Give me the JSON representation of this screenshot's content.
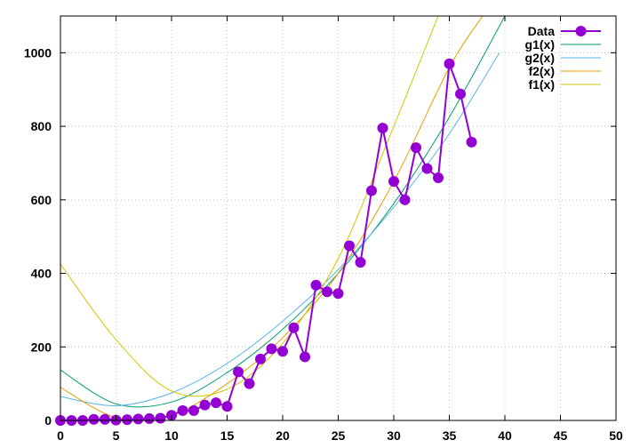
{
  "chart_data": {
    "type": "line",
    "xlim": [
      0,
      50
    ],
    "ylim": [
      0,
      1100
    ],
    "grid": true,
    "legend_position": "top-right",
    "x_ticks": [
      "0",
      "5",
      "10",
      "15",
      "20",
      "25",
      "30",
      "35",
      "40",
      "45",
      "50"
    ],
    "y_ticks": [
      "0",
      "200",
      "400",
      "600",
      "800",
      "1000"
    ],
    "series": [
      {
        "name": "Data",
        "kind": "points-and-line",
        "color": "#9400d3",
        "x": [
          0,
          1,
          2,
          3,
          4,
          5,
          6,
          7,
          8,
          9,
          10,
          11,
          12,
          13,
          14,
          15,
          16,
          17,
          18,
          19,
          20,
          21,
          22,
          23,
          24,
          25,
          26,
          27,
          28,
          29,
          30,
          31,
          32,
          33,
          34,
          35,
          36,
          37
        ],
        "y": [
          0,
          0,
          0,
          3,
          3,
          1,
          2,
          4,
          5,
          6,
          14,
          27,
          27,
          42,
          48,
          38,
          132,
          100,
          167,
          195,
          188,
          252,
          173,
          368,
          350,
          345,
          475,
          430,
          625,
          795,
          650,
          600,
          742,
          685,
          660,
          970,
          888,
          757
        ]
      },
      {
        "name": "g1(x)",
        "kind": "curve",
        "color": "#009e73",
        "x": [
          0,
          5,
          10,
          15,
          20,
          25,
          30,
          35,
          40
        ],
        "y": [
          137,
          45,
          50,
          130,
          248,
          400,
          590,
          825,
          1100
        ]
      },
      {
        "name": "g2(x)",
        "kind": "curve",
        "color": "#56b4e9",
        "x": [
          0,
          5,
          10,
          15,
          20,
          25,
          30,
          35,
          39.5
        ],
        "y": [
          65,
          40,
          75,
          155,
          270,
          410,
          580,
          780,
          1000
        ]
      },
      {
        "name": "f2(x)",
        "kind": "curve",
        "color": "#e69f00",
        "x": [
          0,
          5,
          10,
          15,
          20,
          25,
          30,
          35,
          38
        ],
        "y": [
          90,
          8,
          15,
          100,
          225,
          400,
          650,
          960,
          1100
        ]
      },
      {
        "name": "f1(x)",
        "kind": "curve",
        "color": "#d4c600",
        "x": [
          0,
          5,
          10,
          15,
          20,
          25,
          30,
          34
        ],
        "y": [
          425,
          220,
          80,
          85,
          210,
          440,
          800,
          1100
        ]
      }
    ]
  }
}
